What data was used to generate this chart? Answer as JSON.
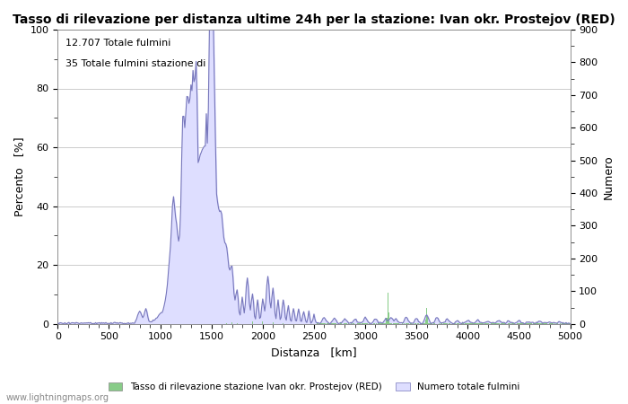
{
  "title": "Tasso di rilevazione per distanza ultime 24h per la stazione: Ivan okr. Prostejov (RED)",
  "xlabel": "Distanza   [km]",
  "ylabel_left": "Percento   [%]",
  "ylabel_right": "Numero",
  "annotation_line1": "12.707 Totale fulmini",
  "annotation_line2": "35 Totale fulmini stazione di",
  "legend_green": "Tasso di rilevazione stazione Ivan okr. Prostejov (RED)",
  "legend_blue": "Numero totale fulmini",
  "watermark": "www.lightningmaps.org",
  "xlim": [
    0,
    5000
  ],
  "ylim_left": [
    0,
    100
  ],
  "ylim_right": [
    0,
    900
  ],
  "bg_color": "#ffffff",
  "plot_bg_color": "#ffffff",
  "grid_color": "#cccccc",
  "blue_line_color": "#7777bb",
  "blue_fill_color": "#dedeff",
  "green_bar_color": "#88cc88",
  "title_fontsize": 10,
  "axis_fontsize": 9,
  "tick_fontsize": 8,
  "annotation_fontsize": 8
}
